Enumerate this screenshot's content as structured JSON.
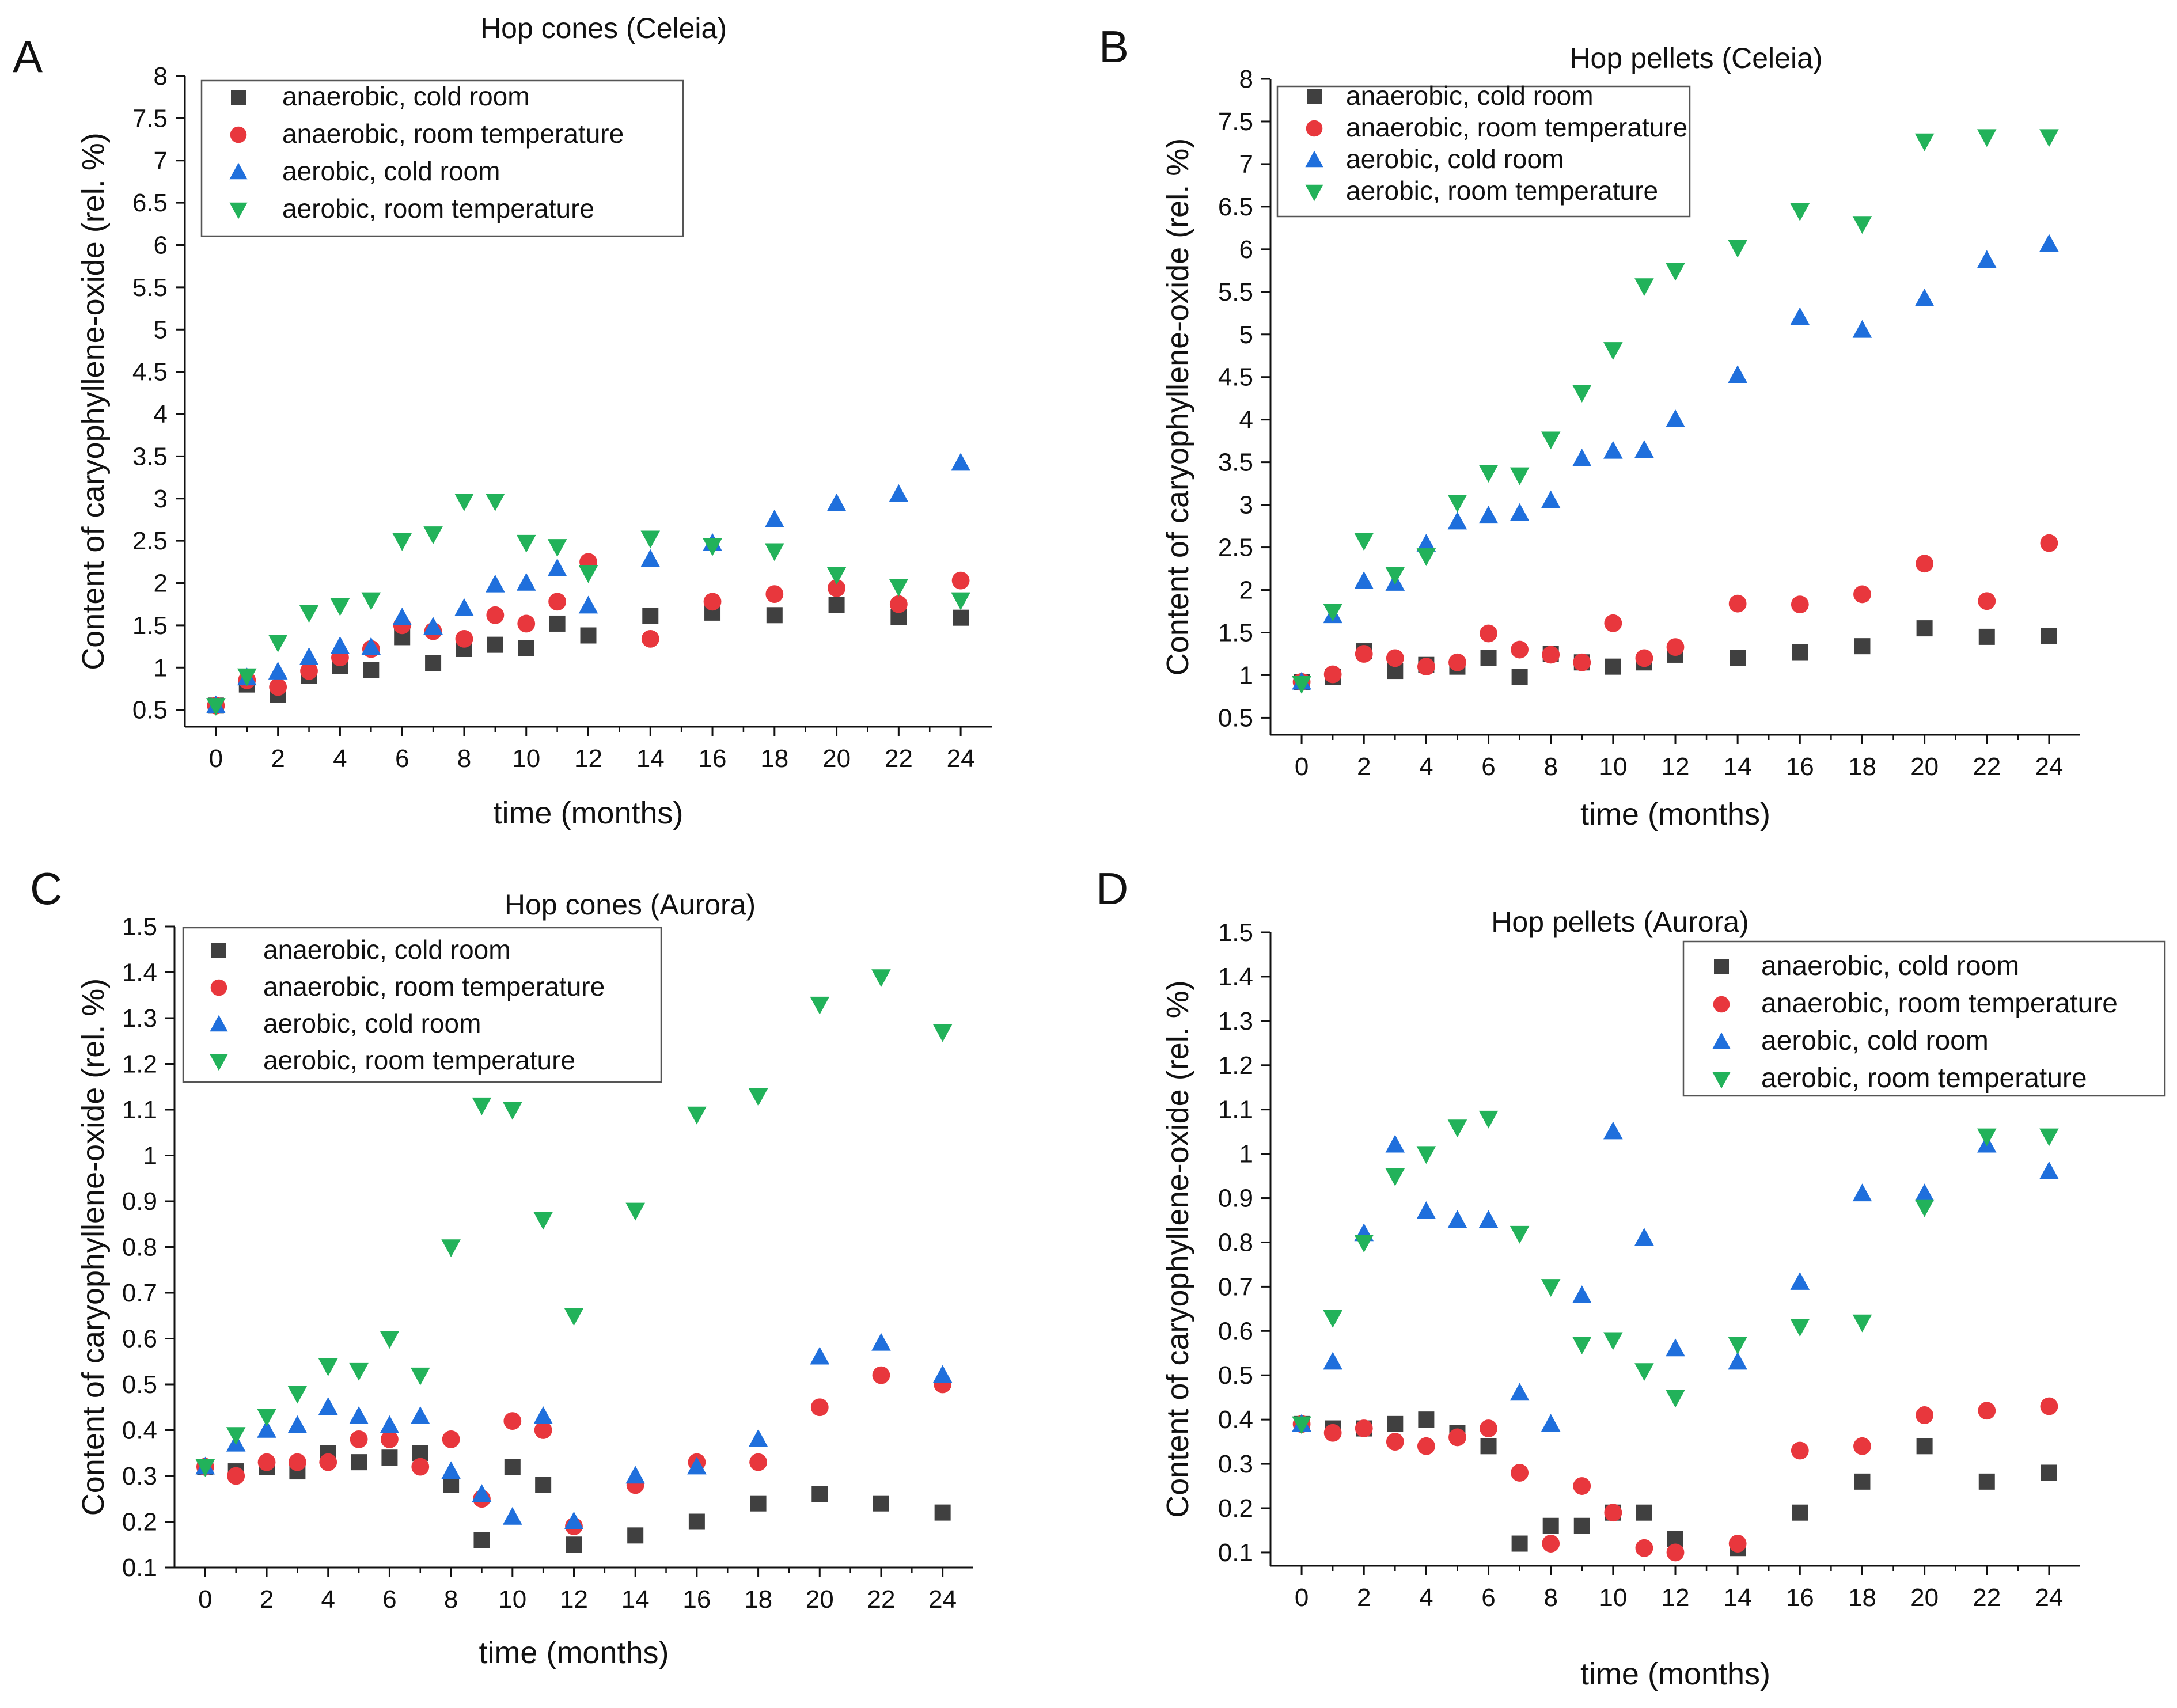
{
  "series_styles": [
    {
      "name": "anaerobic, cold room",
      "color": "#404040",
      "marker": "square"
    },
    {
      "name": "anaerobic, room temperature",
      "color": "#e8373d",
      "marker": "circle"
    },
    {
      "name": "aerobic, cold room",
      "color": "#1f6fdc",
      "marker": "triangle-up"
    },
    {
      "name": "aerobic, room temperature",
      "color": "#22b25a",
      "marker": "triangle-down"
    }
  ],
  "chart_data": [
    {
      "type": "scatter",
      "panel": "A",
      "title": "Hop cones (Celeia)",
      "xlabel": "time (months)",
      "ylabel": "Content of caryophyllene-oxide (rel. %)",
      "xlim": [
        -1,
        25
      ],
      "ylim": [
        0.3,
        8
      ],
      "xticks": [
        0,
        2,
        4,
        6,
        8,
        10,
        12,
        14,
        16,
        18,
        20,
        22,
        24
      ],
      "yticks": [
        0.5,
        1,
        1.5,
        2,
        2.5,
        3,
        3.5,
        4,
        4.5,
        5,
        5.5,
        6,
        6.5,
        7,
        7.5,
        8
      ],
      "x": [
        0,
        1,
        2,
        3,
        4,
        5,
        6,
        7,
        8,
        9,
        10,
        11,
        12,
        14,
        16,
        18,
        20,
        22,
        24
      ],
      "legend_position": "top-left",
      "series": [
        {
          "name": "anaerobic, cold room",
          "values": [
            0.55,
            0.8,
            0.68,
            0.9,
            1.02,
            0.97,
            1.36,
            1.05,
            1.22,
            1.27,
            1.23,
            1.52,
            1.38,
            1.61,
            1.65,
            1.62,
            1.74,
            1.6,
            1.59
          ]
        },
        {
          "name": "anaerobic, room temperature",
          "values": [
            0.55,
            0.85,
            0.77,
            0.96,
            1.12,
            1.22,
            1.5,
            1.43,
            1.34,
            1.62,
            1.52,
            1.78,
            2.25,
            1.34,
            1.78,
            1.87,
            1.94,
            1.75,
            2.03
          ]
        },
        {
          "name": "aerobic, cold room",
          "values": [
            0.55,
            0.88,
            0.95,
            1.12,
            1.25,
            1.24,
            1.59,
            1.48,
            1.7,
            1.98,
            2.0,
            2.17,
            1.73,
            2.28,
            2.47,
            2.75,
            2.94,
            3.05,
            3.42
          ]
        },
        {
          "name": "aerobic, room temperature",
          "values": [
            0.55,
            0.9,
            1.3,
            1.65,
            1.73,
            1.8,
            2.5,
            2.58,
            2.97,
            2.97,
            2.48,
            2.43,
            2.12,
            2.53,
            2.44,
            2.38,
            2.1,
            1.96,
            1.8
          ]
        }
      ]
    },
    {
      "type": "scatter",
      "panel": "B",
      "title": "Hop pellets (Celeia)",
      "xlabel": "time (months)",
      "ylabel": "Content of caryophyllene-oxide (rel. %)",
      "xlim": [
        -1,
        25
      ],
      "ylim": [
        0.3,
        8
      ],
      "xticks": [
        0,
        2,
        4,
        6,
        8,
        10,
        12,
        14,
        16,
        18,
        20,
        22,
        24
      ],
      "yticks": [
        0.5,
        1,
        1.5,
        2,
        2.5,
        3,
        3.5,
        4,
        4.5,
        5,
        5.5,
        6,
        6.5,
        7,
        7.5,
        8
      ],
      "x": [
        0,
        1,
        2,
        3,
        4,
        5,
        6,
        7,
        8,
        9,
        10,
        11,
        12,
        14,
        16,
        18,
        20,
        22,
        24
      ],
      "legend_position": "top-left",
      "series": [
        {
          "name": "anaerobic, cold room",
          "values": [
            0.92,
            0.98,
            1.28,
            1.05,
            1.12,
            1.1,
            1.2,
            0.98,
            1.25,
            1.15,
            1.1,
            1.15,
            1.24,
            1.2,
            1.27,
            1.34,
            1.55,
            1.45,
            1.46
          ]
        },
        {
          "name": "anaerobic, room temperature",
          "values": [
            0.92,
            1.01,
            1.25,
            1.2,
            1.1,
            1.15,
            1.49,
            1.3,
            1.24,
            1.15,
            1.61,
            1.2,
            1.33,
            1.84,
            1.83,
            1.95,
            2.31,
            1.87,
            2.55
          ]
        },
        {
          "name": "aerobic, cold room",
          "values": [
            0.92,
            1.7,
            2.1,
            2.08,
            2.54,
            2.8,
            2.87,
            2.9,
            3.05,
            3.54,
            3.63,
            3.64,
            4.0,
            4.52,
            5.2,
            5.05,
            5.42,
            5.87,
            6.06
          ]
        },
        {
          "name": "aerobic, room temperature",
          "values": [
            0.9,
            1.75,
            2.58,
            2.18,
            2.4,
            3.03,
            3.38,
            3.35,
            3.77,
            4.32,
            4.82,
            5.57,
            5.75,
            6.02,
            6.45,
            6.3,
            7.27,
            7.32,
            7.32
          ]
        }
      ]
    },
    {
      "type": "scatter",
      "panel": "C",
      "title": "Hop cones (Aurora)",
      "xlabel": "time (months)",
      "ylabel": "Content of caryophyllene-oxide (rel. %)",
      "xlim": [
        -1,
        25
      ],
      "ylim": [
        0.1,
        1.5
      ],
      "xticks": [
        0,
        2,
        4,
        6,
        8,
        10,
        12,
        14,
        16,
        18,
        20,
        22,
        24
      ],
      "yticks": [
        0.1,
        0.2,
        0.3,
        0.4,
        0.5,
        0.6,
        0.7,
        0.8,
        0.9,
        1,
        1.1,
        1.2,
        1.3,
        1.4,
        1.5
      ],
      "x": [
        0,
        1,
        2,
        3,
        4,
        5,
        6,
        7,
        8,
        9,
        10,
        11,
        12,
        14,
        16,
        18,
        20,
        22,
        24
      ],
      "legend_position": "top-left",
      "series": [
        {
          "name": "anaerobic, cold room",
          "values": [
            0.32,
            0.31,
            0.32,
            0.31,
            0.35,
            0.33,
            0.34,
            0.35,
            0.28,
            0.16,
            0.32,
            0.28,
            0.15,
            0.17,
            0.2,
            0.24,
            0.26,
            0.24,
            0.22
          ]
        },
        {
          "name": "anaerobic, room temperature",
          "values": [
            0.32,
            0.3,
            0.33,
            0.33,
            0.33,
            0.38,
            0.38,
            0.32,
            0.38,
            0.25,
            0.42,
            0.4,
            0.19,
            0.28,
            0.33,
            0.33,
            0.45,
            0.52,
            0.5
          ]
        },
        {
          "name": "aerobic, cold room",
          "values": [
            0.32,
            0.37,
            0.4,
            0.41,
            0.45,
            0.43,
            0.41,
            0.43,
            0.31,
            0.26,
            0.21,
            0.43,
            0.2,
            0.3,
            0.32,
            0.38,
            0.56,
            0.59,
            0.52
          ]
        },
        {
          "name": "aerobic, room temperature",
          "values": [
            0.32,
            0.39,
            0.43,
            0.48,
            0.54,
            0.53,
            0.6,
            0.52,
            0.8,
            1.11,
            1.1,
            0.86,
            0.65,
            0.88,
            1.09,
            1.13,
            1.33,
            1.39,
            1.27
          ]
        }
      ]
    },
    {
      "type": "scatter",
      "panel": "D",
      "title": "Hop pellets (Aurora)",
      "xlabel": "time (months)",
      "ylabel": "Content of caryophyllene-oxide (rel. %)",
      "xlim": [
        -1,
        25
      ],
      "ylim": [
        0.07,
        1.5
      ],
      "xticks": [
        0,
        2,
        4,
        6,
        8,
        10,
        12,
        14,
        16,
        18,
        20,
        22,
        24
      ],
      "yticks": [
        0.1,
        0.2,
        0.3,
        0.4,
        0.5,
        0.6,
        0.7,
        0.8,
        0.9,
        1,
        1.1,
        1.2,
        1.3,
        1.4,
        1.5
      ],
      "x": [
        0,
        1,
        2,
        3,
        4,
        5,
        6,
        7,
        8,
        9,
        10,
        11,
        12,
        14,
        16,
        18,
        20,
        22,
        24
      ],
      "legend_position": "top-right",
      "series": [
        {
          "name": "anaerobic, cold room",
          "values": [
            0.39,
            0.38,
            0.38,
            0.39,
            0.4,
            0.37,
            0.34,
            0.12,
            0.16,
            0.16,
            0.19,
            0.19,
            0.13,
            0.11,
            0.19,
            0.26,
            0.34,
            0.26,
            0.28
          ]
        },
        {
          "name": "anaerobic, room temperature",
          "values": [
            0.39,
            0.37,
            0.38,
            0.35,
            0.34,
            0.36,
            0.38,
            0.28,
            0.12,
            0.25,
            0.19,
            0.11,
            0.1,
            0.12,
            0.33,
            0.34,
            0.41,
            0.42,
            0.43
          ]
        },
        {
          "name": "aerobic, cold room",
          "values": [
            0.39,
            0.53,
            0.82,
            1.02,
            0.87,
            0.85,
            0.85,
            0.46,
            0.39,
            0.68,
            1.05,
            0.81,
            0.56,
            0.53,
            0.71,
            0.91,
            0.91,
            1.02,
            0.96
          ]
        },
        {
          "name": "aerobic, room temperature",
          "values": [
            0.39,
            0.63,
            0.8,
            0.95,
            1.0,
            1.06,
            1.08,
            0.82,
            0.7,
            0.57,
            0.58,
            0.51,
            0.45,
            0.57,
            0.61,
            0.62,
            0.88,
            1.04,
            1.04
          ]
        }
      ]
    }
  ]
}
